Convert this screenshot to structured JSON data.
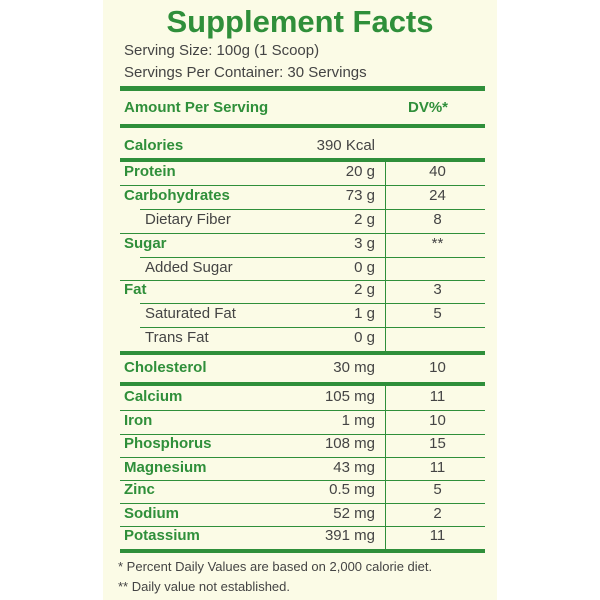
{
  "title": "Supplement Facts",
  "serving_size": "Serving Size: 100g (1 Scoop)",
  "servings_per_container": "Servings Per Container: 30 Servings",
  "header": {
    "amount": "Amount Per Serving",
    "dv": "DV%*"
  },
  "rows": [
    {
      "name": "Calories",
      "amount": "390 Kcal"
    },
    {
      "name": "Protein",
      "amount": "20 g",
      "dv": "40"
    },
    {
      "name": "Carbohydrates",
      "amount": "73 g",
      "dv": "24"
    },
    {
      "name": "Dietary Fiber",
      "amount": "2 g",
      "dv": "8"
    },
    {
      "name": "Sugar",
      "amount": "3 g",
      "dv": "**"
    },
    {
      "name": "Added Sugar",
      "amount": "0 g"
    },
    {
      "name": "Fat",
      "amount": "2 g",
      "dv": "3"
    },
    {
      "name": "Saturated Fat",
      "amount": "1 g",
      "dv": "5"
    },
    {
      "name": "Trans Fat",
      "amount": "0 g"
    },
    {
      "name": "Cholesterol",
      "amount": "30 mg",
      "dv": "10"
    },
    {
      "name": "Calcium",
      "amount": "105 mg",
      "dv": "11"
    },
    {
      "name": "Iron",
      "amount": "1 mg",
      "dv": "10"
    },
    {
      "name": "Phosphorus",
      "amount": "108 mg",
      "dv": "15"
    },
    {
      "name": "Magnesium",
      "amount": "43 mg",
      "dv": "11"
    },
    {
      "name": "Zinc",
      "amount": "0.5 mg",
      "dv": "5"
    },
    {
      "name": "Sodium",
      "amount": "52 mg",
      "dv": "2"
    },
    {
      "name": "Potassium",
      "amount": "391 mg",
      "dv": "11"
    }
  ],
  "footnotes": [
    "* Percent Daily Values are based on 2,000 calorie diet.",
    "** Daily value not established."
  ]
}
